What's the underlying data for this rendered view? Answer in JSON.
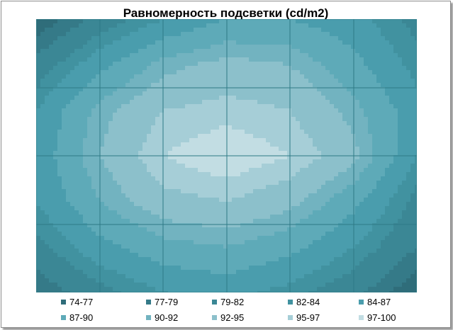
{
  "chart_data": {
    "type": "heatmap",
    "title": "Равномерность подсветки (cd/m2)",
    "grid": true,
    "legend_placement": "bottom",
    "levels": [
      {
        "label": "74-77",
        "min": 74,
        "max": 77,
        "color": "#2f6d7a"
      },
      {
        "label": "77-79",
        "min": 77,
        "max": 79,
        "color": "#357a88"
      },
      {
        "label": "79-82",
        "min": 79,
        "max": 82,
        "color": "#3b8795"
      },
      {
        "label": "82-84",
        "min": 82,
        "max": 84,
        "color": "#4192a0"
      },
      {
        "label": "84-87",
        "min": 84,
        "max": 87,
        "color": "#4a9dad"
      },
      {
        "label": "87-90",
        "min": 87,
        "max": 90,
        "color": "#5eaab8"
      },
      {
        "label": "90-92",
        "min": 90,
        "max": 92,
        "color": "#72b3c0"
      },
      {
        "label": "92-95",
        "min": 92,
        "max": 95,
        "color": "#8cc0cb"
      },
      {
        "label": "95-97",
        "min": 95,
        "max": 97,
        "color": "#a6ced7"
      },
      {
        "label": "97-100",
        "min": 97,
        "max": 100,
        "color": "#c2dde3"
      }
    ],
    "values": [
      [
        75,
        80,
        84,
        87,
        87,
        85,
        81
      ],
      [
        80,
        86,
        91,
        93,
        92,
        88,
        83
      ],
      [
        84,
        91,
        95,
        96,
        95,
        91,
        85
      ],
      [
        85,
        92,
        97,
        99,
        97,
        93,
        84
      ],
      [
        84,
        90,
        94,
        95,
        93,
        88,
        81
      ],
      [
        81,
        86,
        89,
        90,
        88,
        84,
        79
      ],
      [
        77,
        81,
        84,
        85,
        83,
        80,
        75
      ]
    ]
  }
}
